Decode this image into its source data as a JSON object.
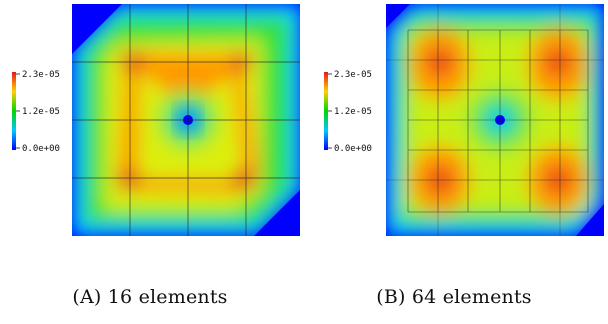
{
  "figure": {
    "colorbar": {
      "ticks": [
        "2.3e-05",
        "1.2e-05",
        "0.0e+00"
      ],
      "colors": [
        "#e31a1c",
        "#ffd000",
        "#00d800",
        "#00c8ff",
        "#0000ff"
      ]
    },
    "panels": [
      {
        "id": "a",
        "letter": "(A)",
        "caption": "16 elements",
        "mesh_divisions": 4,
        "background_color": "#0000ff"
      },
      {
        "id": "b",
        "letter": "(B)",
        "caption": "64 elements",
        "mesh_divisions": 8,
        "background_color": "#0000ff"
      }
    ]
  }
}
